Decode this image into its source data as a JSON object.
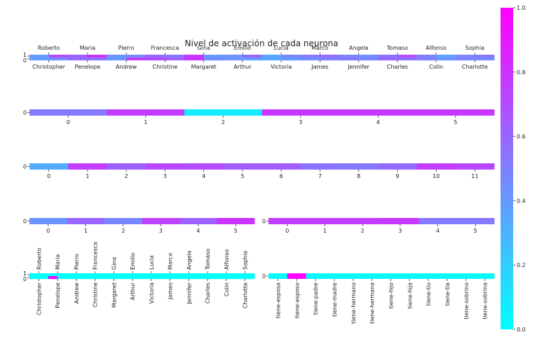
{
  "figure_title": "Nivel de activación de cada neurona",
  "colors": {
    "low": "#00ffff",
    "high": "#ff00ff",
    "text": "#222222"
  },
  "chart_data": [
    {
      "type": "heatmap",
      "name": "people-input",
      "xticks_top": [
        "Roberto",
        "Maria",
        "Pierro",
        "Francesca",
        "Gina",
        "Emilio",
        "Lucia",
        "Marco",
        "Angela",
        "Tomaso",
        "Alfonso",
        "Sophia"
      ],
      "xticks_bottom": [
        "Christopher",
        "Penelope",
        "Andrew",
        "Christine",
        "Margaret",
        "Arthur",
        "Victoria",
        "James",
        "Jennifer",
        "Charles",
        "Colin",
        "Charlotte"
      ],
      "yticks": [
        "1",
        "0"
      ],
      "rows": [
        [
          0.38,
          0.72,
          0.62,
          0.8,
          0.42,
          0.45,
          0.6,
          0.55,
          0.78,
          0.4,
          0.42,
          0.6,
          0.35,
          0.48,
          0.52,
          0.58,
          0.48,
          0.45,
          0.55,
          0.7,
          0.5,
          0.38,
          0.48,
          0.52
        ],
        [
          0.38,
          0.45,
          0.58,
          0.55,
          0.4,
          0.75,
          0.7,
          0.62,
          0.8,
          0.45,
          0.42,
          0.38,
          0.35,
          0.4,
          0.45,
          0.5,
          0.52,
          0.48,
          0.6,
          0.55,
          0.5,
          0.42,
          0.48,
          0.45
        ]
      ]
    },
    {
      "type": "heatmap",
      "name": "layer-6",
      "xticks": [
        "0",
        "1",
        "2",
        "3",
        "4",
        "5"
      ],
      "yticks": [
        "0"
      ],
      "values": [
        0.52,
        0.76,
        0.08,
        0.78,
        0.78,
        0.78
      ]
    },
    {
      "type": "heatmap",
      "name": "layer-12",
      "xticks": [
        "0",
        "1",
        "2",
        "3",
        "4",
        "5",
        "6",
        "7",
        "8",
        "9",
        "10",
        "11"
      ],
      "yticks": [
        "0"
      ],
      "values": [
        0.32,
        0.76,
        0.62,
        0.72,
        0.7,
        0.64,
        0.64,
        0.55,
        0.52,
        0.58,
        0.76,
        0.72
      ]
    },
    {
      "type": "heatmap",
      "name": "layer-6-left",
      "xticks": [
        "0",
        "1",
        "2",
        "3",
        "4",
        "5"
      ],
      "yticks": [
        "0"
      ],
      "values": [
        0.42,
        0.6,
        0.48,
        0.74,
        0.62,
        0.8
      ]
    },
    {
      "type": "heatmap",
      "name": "layer-6-right",
      "xticks": [
        "0",
        "1",
        "2",
        "3",
        "4",
        "5"
      ],
      "yticks": [
        "0"
      ],
      "values": [
        0.76,
        0.76,
        0.76,
        0.78,
        0.52,
        0.52
      ]
    },
    {
      "type": "heatmap",
      "name": "people-output",
      "xticks_top": [
        "Roberto",
        "Maria",
        "Pierro",
        "Francesca",
        "Gina",
        "Emilio",
        "Lucia",
        "Marco",
        "Angela",
        "Tomaso",
        "Alfonso",
        "Sophia"
      ],
      "xticks_bottom": [
        "Christopher",
        "Penelope",
        "Andrew",
        "Christine",
        "Margaret",
        "Arthur",
        "Victoria",
        "James",
        "Jennifer",
        "Charles",
        "Colin",
        "Charlotte"
      ],
      "yticks": [
        "1",
        "0"
      ],
      "rows": [
        [
          0,
          0,
          0,
          0,
          0,
          0,
          0,
          0,
          0,
          0,
          0,
          0,
          0,
          0,
          0,
          0,
          0,
          0,
          0,
          0,
          0,
          0,
          0,
          0
        ],
        [
          0,
          0,
          0.95,
          0,
          0,
          0,
          0,
          0,
          0,
          0,
          0,
          0,
          0,
          0,
          0,
          0,
          0,
          0,
          0,
          0,
          0,
          0,
          0,
          0
        ]
      ]
    },
    {
      "type": "heatmap",
      "name": "relations",
      "xticks": [
        "tiene-esposa",
        "tiene-esposo",
        "tiene-padre",
        "tiene-madre",
        "tiene-hermano",
        "tiene-hermana",
        "tiene-hijo",
        "tiene-hija",
        "tiene-tio",
        "tiene-tia",
        "tiene-sobrino",
        "tiene-sobrina"
      ],
      "yticks": [
        "0"
      ],
      "values": [
        0.02,
        0.98,
        0.02,
        0.02,
        0.02,
        0.02,
        0.02,
        0.02,
        0.02,
        0.02,
        0.02,
        0.02
      ]
    },
    {
      "type": "colorbar",
      "name": "colorbar",
      "range": [
        0.0,
        1.0
      ],
      "ticks": [
        "0.0",
        "0.2",
        "0.4",
        "0.6",
        "0.8",
        "1.0"
      ]
    }
  ]
}
